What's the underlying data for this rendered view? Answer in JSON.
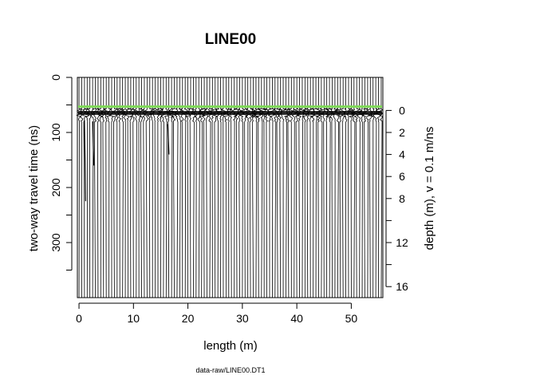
{
  "chart_data": {
    "type": "radargram",
    "title": "LINE00",
    "xlabel": "length (m)",
    "ylabel": "two-way travel time (ns)",
    "y2label": "depth (m),  v = 0.1 m/ns",
    "footer": "data-raw/LINE00.DT1",
    "xlim": [
      -0.3,
      55.8
    ],
    "ylim": [
      0,
      400
    ],
    "y_reversed": true,
    "x_ticks": [
      {
        "value": 0,
        "label": "0"
      },
      {
        "value": 10,
        "label": "10"
      },
      {
        "value": 20,
        "label": "20"
      },
      {
        "value": 30,
        "label": "30"
      },
      {
        "value": 40,
        "label": "40"
      },
      {
        "value": 50,
        "label": "50"
      }
    ],
    "y_ticks": [
      {
        "value": 0,
        "label": "0"
      },
      {
        "value": 100,
        "label": "100"
      },
      {
        "value": 200,
        "label": "200"
      },
      {
        "value": 300,
        "label": "300"
      }
    ],
    "y_minor_ticks": [
      50,
      150,
      250,
      350
    ],
    "depth_axis": {
      "time_zero_ns": 60,
      "velocity_m_per_ns": 0.1,
      "ticks": [
        {
          "value": 0,
          "label": "0"
        },
        {
          "value": 2,
          "label": "2"
        },
        {
          "value": 4,
          "label": "4"
        },
        {
          "value": 6,
          "label": "6"
        },
        {
          "value": 8,
          "label": "8"
        },
        {
          "value": 10,
          "label": ""
        },
        {
          "value": 12,
          "label": "12"
        },
        {
          "value": 14,
          "label": ""
        },
        {
          "value": 16,
          "label": "16"
        }
      ]
    },
    "traces": {
      "count": 112,
      "x_start": 0.0,
      "x_step": 0.5,
      "color": "#000000"
    },
    "time_zero_line": {
      "t_ns": 53,
      "color": "#7ed957"
    },
    "reflection_band": {
      "top_ns": 57,
      "bottom_ns": 72
    },
    "grid": false,
    "legend": null
  }
}
